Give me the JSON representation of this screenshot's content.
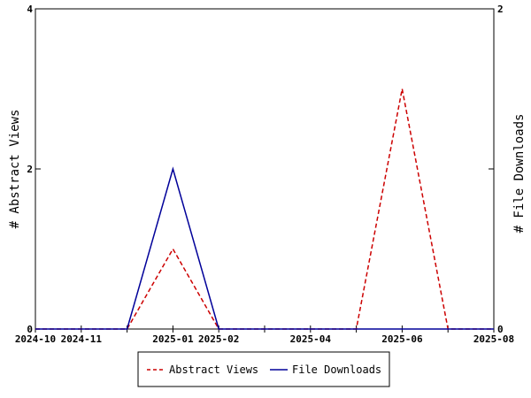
{
  "chart_data": {
    "type": "line",
    "x": [
      "2024-10",
      "2024-11",
      "2024-12",
      "2025-01",
      "2025-02",
      "2025-03",
      "2025-04",
      "2025-05",
      "2025-06",
      "2025-07",
      "2025-08"
    ],
    "x_ticks": [
      "2024-10",
      "2024-11",
      "2025-01",
      "2025-02",
      "2025-04",
      "2025-06",
      "2025-08"
    ],
    "series": [
      {
        "name": "Abstract Views",
        "axis": "left",
        "color": "#cc0000",
        "dash": "dashed",
        "values": [
          0,
          0,
          0,
          1,
          0,
          0,
          0,
          0,
          3,
          0,
          0
        ]
      },
      {
        "name": "File Downloads",
        "axis": "right",
        "color": "#000099",
        "dash": "solid",
        "values": [
          0,
          0,
          0,
          1,
          0,
          0,
          0,
          0,
          0,
          0,
          0
        ]
      }
    ],
    "ylabel": "# Abstract Views",
    "ylabel_right": "# File Downloads",
    "ylim": [
      0,
      4
    ],
    "ylim_right": [
      0,
      2
    ],
    "y_ticks": [
      "0",
      "2",
      "4"
    ],
    "y_ticks_right": [
      "0",
      "1",
      "2"
    ],
    "legend_position": "bottom"
  }
}
